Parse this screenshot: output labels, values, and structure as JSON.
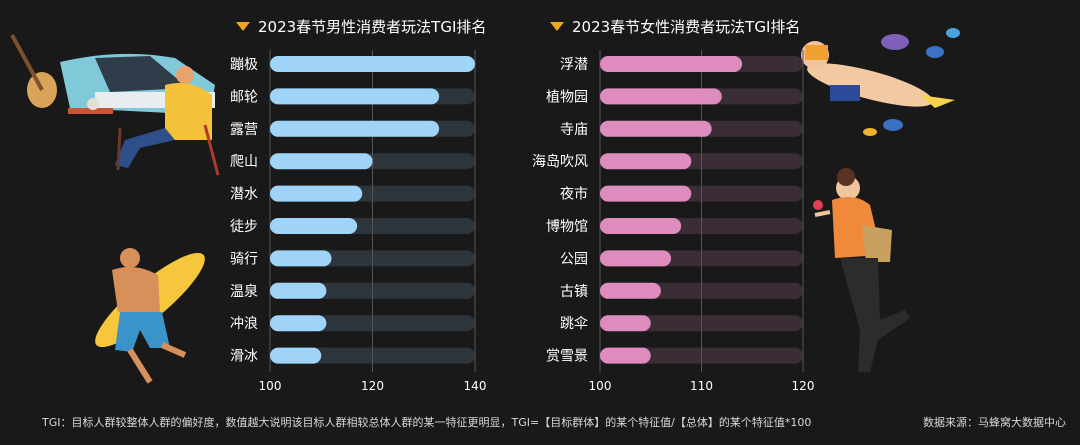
{
  "colors": {
    "background": "#191919",
    "track_left": "#2d353c",
    "track_right": "#3a2d36",
    "bar_left": "#9fd3f7",
    "bar_right": "#de8bbe",
    "title_marker": "#f2a81d",
    "gridline": "#555555"
  },
  "chart_data": [
    {
      "type": "bar",
      "orientation": "horizontal",
      "title": "2023春节男性消费者玩法TGI排名",
      "categories": [
        "蹦极",
        "邮轮",
        "露营",
        "爬山",
        "潜水",
        "徒步",
        "骑行",
        "温泉",
        "冲浪",
        "滑冰"
      ],
      "values": [
        140,
        133,
        133,
        120,
        118,
        117,
        112,
        111,
        111,
        110
      ],
      "xlim": [
        100,
        140
      ],
      "ticks": [
        "100",
        "120",
        "140"
      ],
      "xlabel": "",
      "ylabel": "",
      "grid": true
    },
    {
      "type": "bar",
      "orientation": "horizontal",
      "title": "2023春节女性消费者玩法TGI排名",
      "categories": [
        "浮潜",
        "植物园",
        "寺庙",
        "海岛吹风",
        "夜市",
        "博物馆",
        "公园",
        "古镇",
        "跳伞",
        "赏雪景"
      ],
      "values": [
        114,
        112,
        111,
        109,
        109,
        108,
        107,
        106,
        105,
        105
      ],
      "xlim": [
        100,
        120
      ],
      "ticks": [
        "100",
        "110",
        "120"
      ],
      "xlabel": "",
      "ylabel": "",
      "grid": true
    }
  ],
  "footer": {
    "note": "TGI：目标人群较整体人群的偏好度，数值越大说明该目标人群相较总体人群的某一特征更明显，TGI=【目标群体】的某个特征值/【总体】的某个特征值*100",
    "source": "数据来源：马蜂窝大数据中心"
  }
}
